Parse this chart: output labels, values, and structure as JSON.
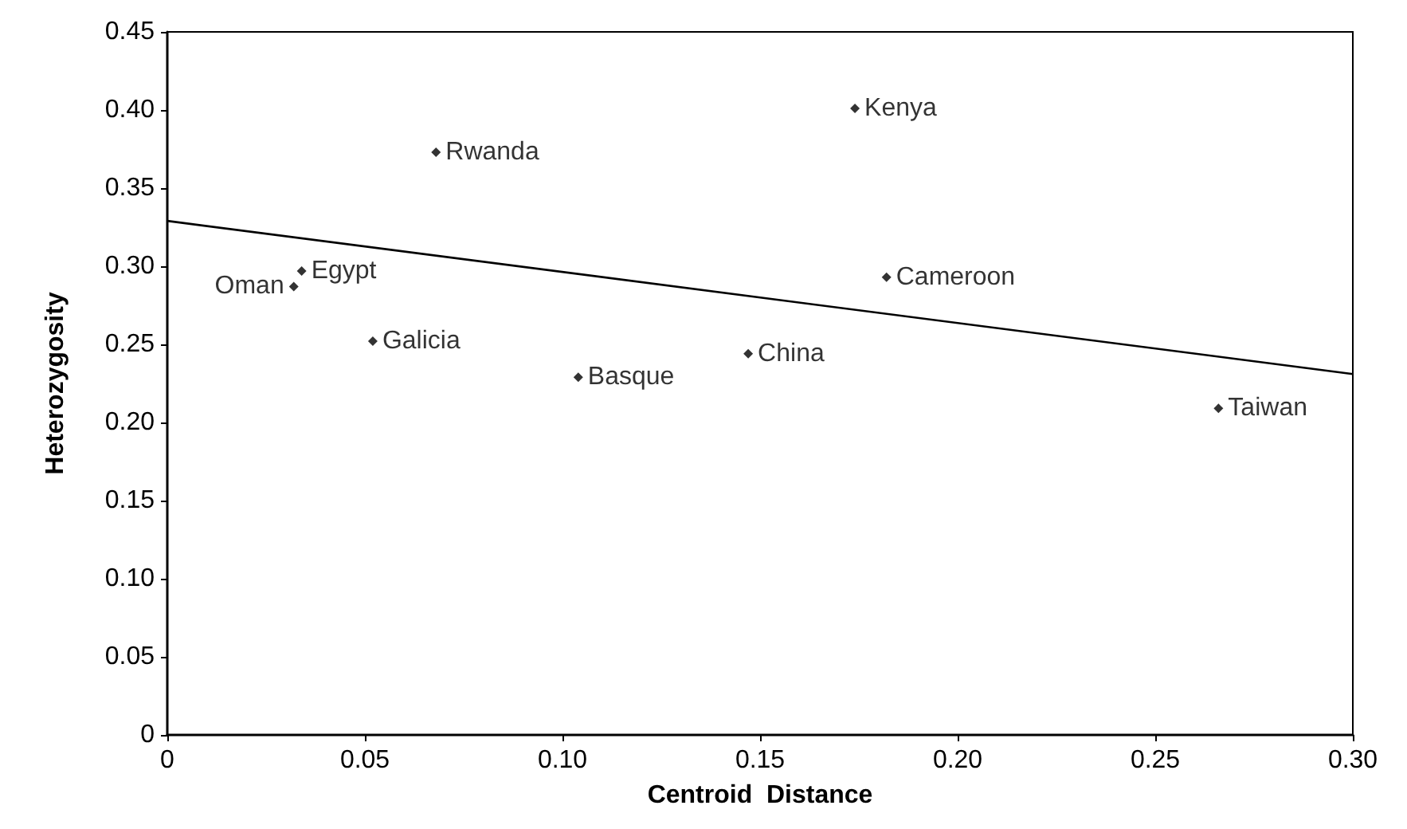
{
  "chart_data": {
    "type": "scatter",
    "xlabel": "Centroid  Distance",
    "ylabel": "Heterozygosity",
    "xlim": [
      0,
      0.3
    ],
    "xticks": [
      {
        "value": 0,
        "label": "0"
      },
      0.05,
      {
        "value": 0.1,
        "label": "0.10"
      },
      0.15,
      {
        "value": 0.2,
        "label": "0.20"
      },
      0.25,
      {
        "value": 0.3,
        "label": "0.30"
      }
    ],
    "ylim": [
      0,
      0.45
    ],
    "yticks": [
      {
        "value": 0,
        "label": "0"
      },
      0.05,
      {
        "value": 0.1,
        "label": "0.10"
      },
      0.15,
      {
        "value": 0.2,
        "label": "0.20"
      },
      0.25,
      {
        "value": 0.3,
        "label": "0.30"
      },
      0.35,
      {
        "value": 0.4,
        "label": "0.40"
      },
      0.45
    ],
    "grid": false,
    "marker": "diamond",
    "series": [
      {
        "color": "#000000",
        "x": [
          0.032,
          0.034,
          0.068,
          0.052,
          0.174,
          0.182,
          0.147,
          0.104,
          0.266
        ],
        "values": [
          0.287,
          0.297,
          0.373,
          0.252,
          0.401,
          0.293,
          0.244,
          0.229,
          0.209
        ]
      },
      {
        "type": "line",
        "color": "#000000",
        "marker": "none",
        "x": [
          0,
          0.3
        ],
        "values": [
          0.329,
          0.231
        ]
      }
    ],
    "annotations": [
      {
        "text": "Oman",
        "x": 0.032,
        "y": 0.287
      },
      {
        "text": "Egypt",
        "x": 0.034,
        "y": 0.297
      },
      {
        "text": "Rwanda",
        "x": 0.068,
        "y": 0.373
      },
      {
        "text": "Galicia",
        "x": 0.052,
        "y": 0.252
      },
      {
        "text": "Kenya",
        "x": 0.174,
        "y": 0.401
      },
      {
        "text": "Cameroon",
        "x": 0.182,
        "y": 0.293
      },
      {
        "text": "China",
        "x": 0.147,
        "y": 0.244
      },
      {
        "text": "Basque",
        "x": 0.104,
        "y": 0.229
      },
      {
        "text": "Taiwan",
        "x": 0.266,
        "y": 0.209
      }
    ]
  }
}
